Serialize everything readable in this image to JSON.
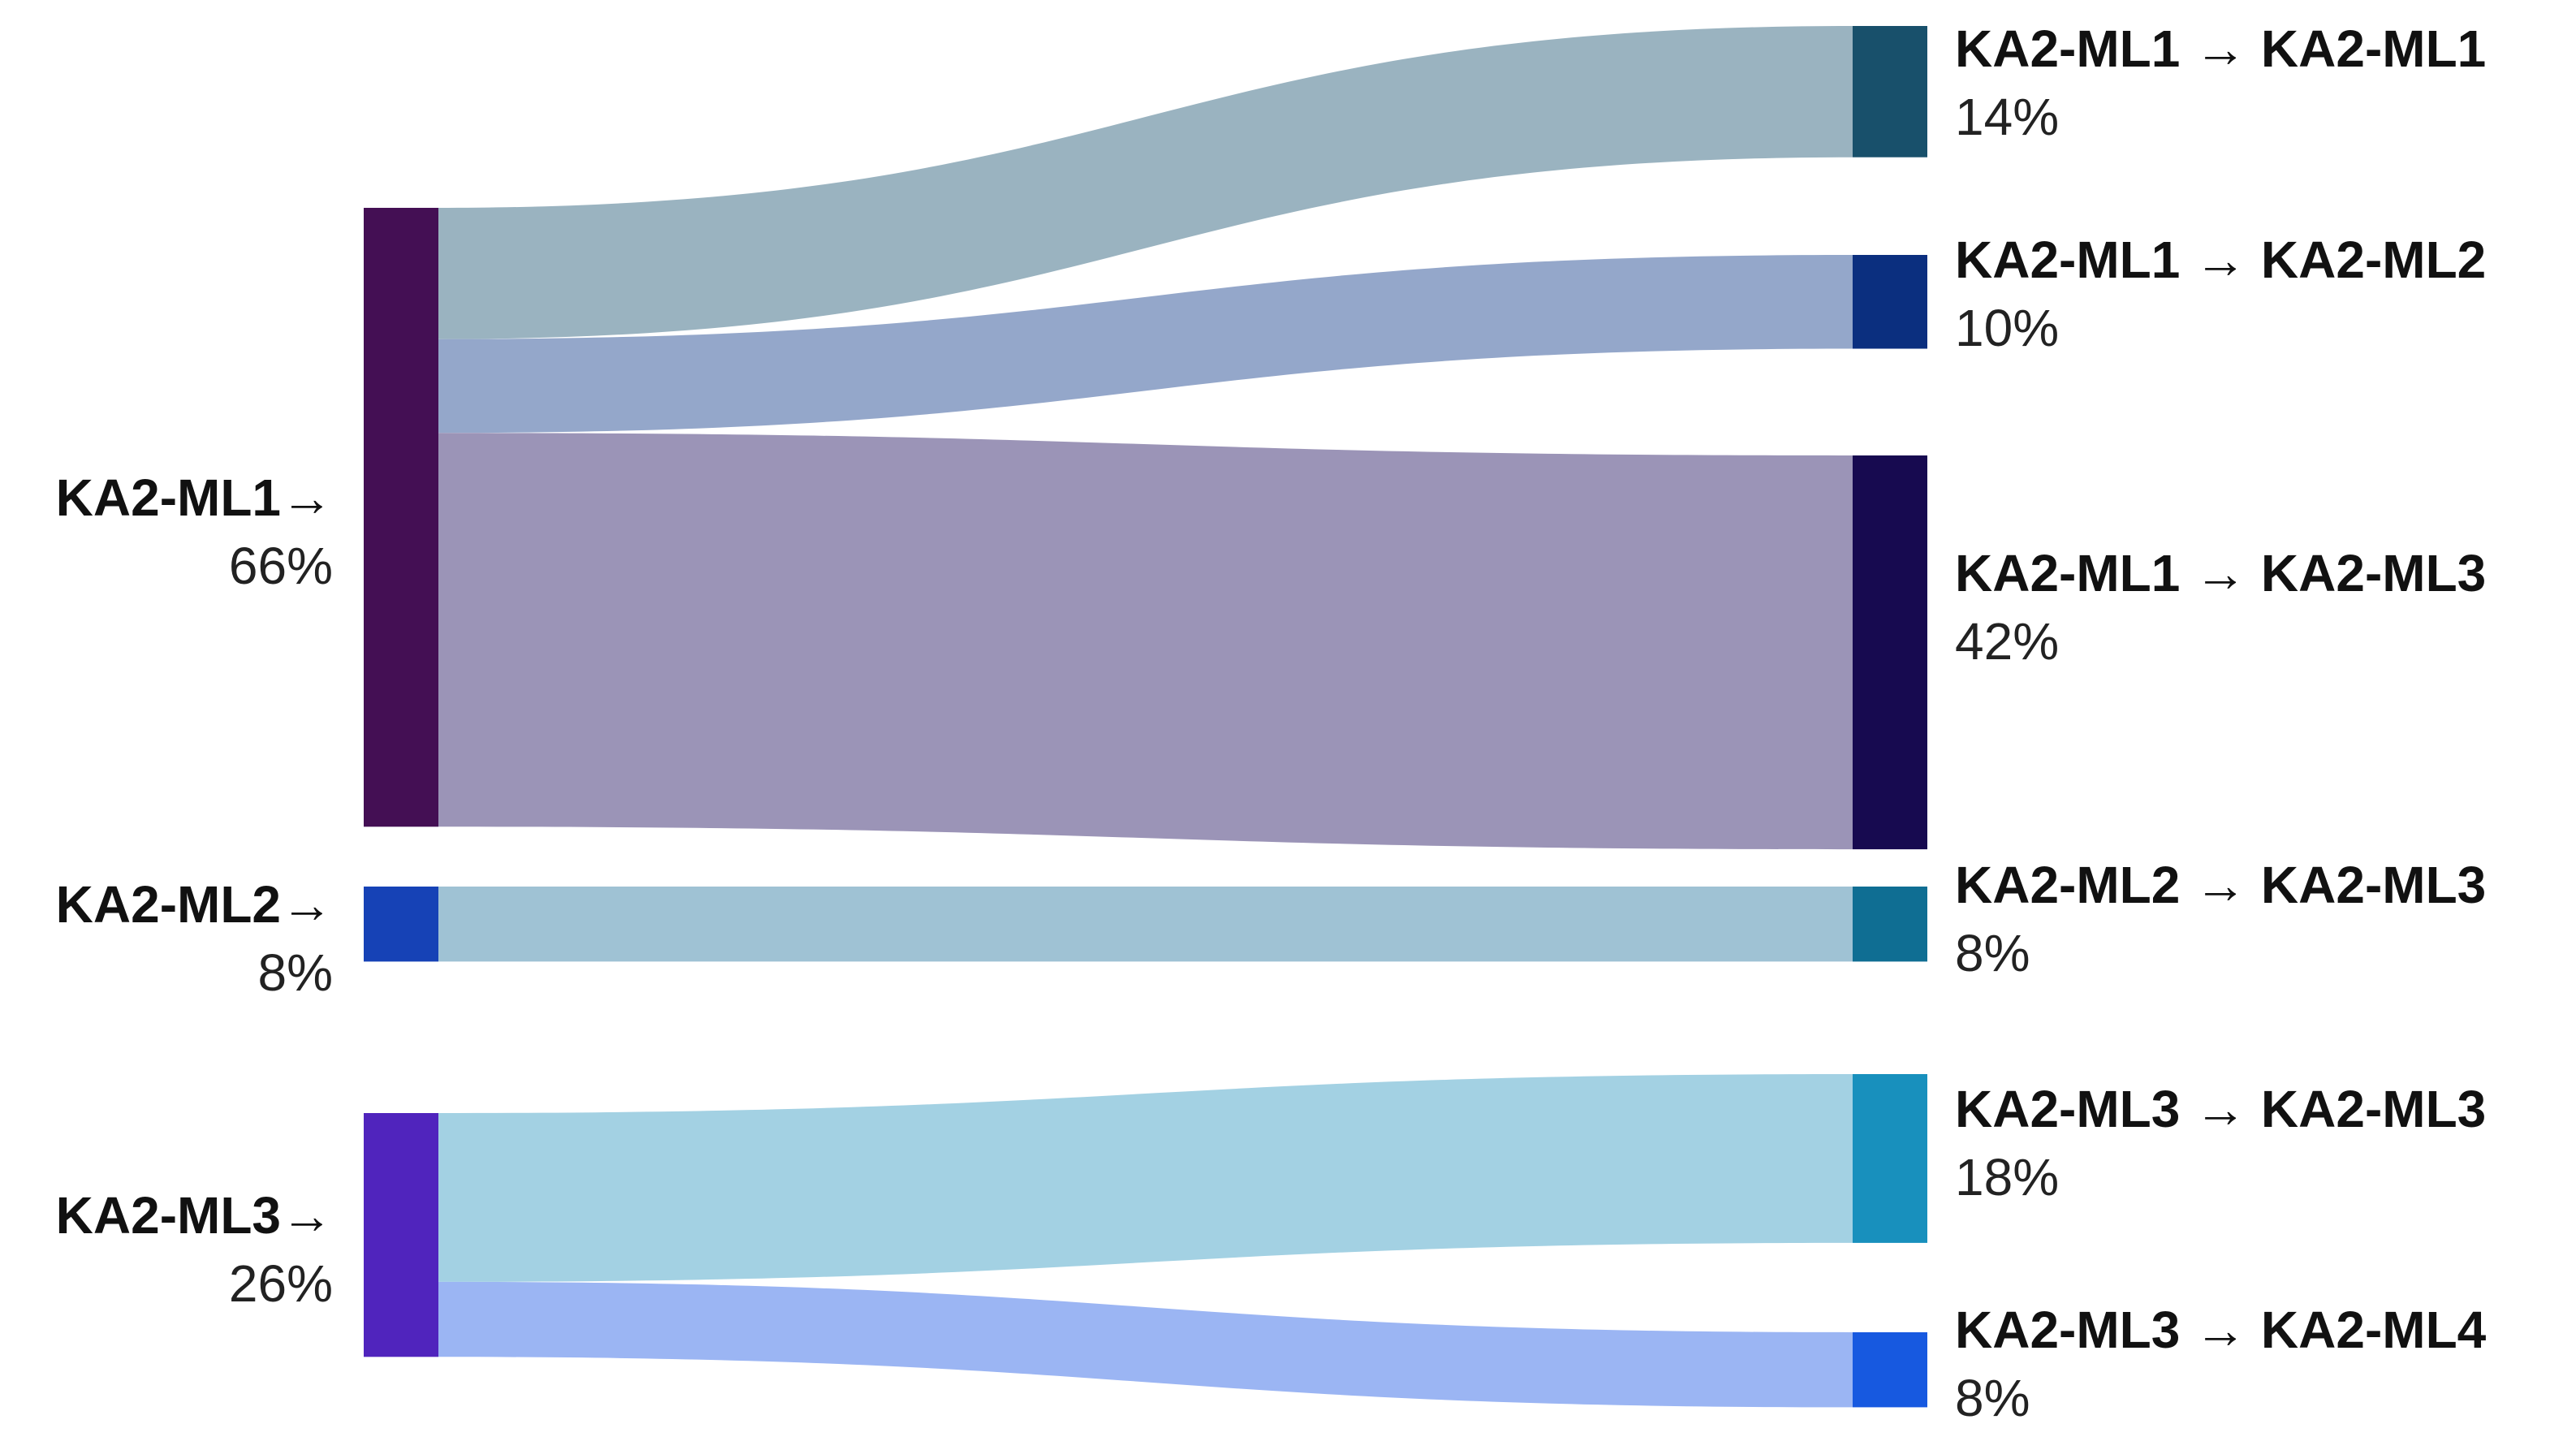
{
  "chart_data": {
    "type": "sankey",
    "unit": "%",
    "sources": [
      {
        "id": "src1",
        "label": "KA2-ML1→",
        "value_label": "66%",
        "value": 66,
        "color": "#440f54"
      },
      {
        "id": "src2",
        "label": "KA2-ML2→",
        "value_label": "8%",
        "value": 8,
        "color": "#1642b6"
      },
      {
        "id": "src3",
        "label": "KA2-ML3→",
        "value_label": "26%",
        "value": 26,
        "color": "#5024bd"
      }
    ],
    "targets": [
      {
        "id": "t1",
        "label": "KA2-ML1 → KA2-ML1",
        "value_label": "14%",
        "value": 14,
        "color": "#18506b"
      },
      {
        "id": "t2",
        "label": "KA2-ML1 → KA2-ML2",
        "value_label": "10%",
        "value": 10,
        "color": "#0b2f7f"
      },
      {
        "id": "t3",
        "label": "KA2-ML1 → KA2-ML3",
        "value_label": "42%",
        "value": 42,
        "color": "#170a50"
      },
      {
        "id": "t4",
        "label": "KA2-ML2 → KA2-ML3",
        "value_label": "8%",
        "value": 8,
        "color": "#0f6e93"
      },
      {
        "id": "t5",
        "label": "KA2-ML3 → KA2-ML3",
        "value_label": "18%",
        "value": 18,
        "color": "#1890bd"
      },
      {
        "id": "t6",
        "label": "KA2-ML3 → KA2-ML4",
        "value_label": "8%",
        "value": 8,
        "color": "#1759e0"
      }
    ],
    "links": [
      {
        "source": "src1",
        "target": "t1",
        "value": 14,
        "color": "#9ab3c0"
      },
      {
        "source": "src1",
        "target": "t2",
        "value": 10,
        "color": "#94a7ca"
      },
      {
        "source": "src1",
        "target": "t3",
        "value": 42,
        "color": "#9b94b7"
      },
      {
        "source": "src2",
        "target": "t4",
        "value": 8,
        "color": "#9fc2d4"
      },
      {
        "source": "src3",
        "target": "t5",
        "value": 18,
        "color": "#a3d1e3"
      },
      {
        "source": "src3",
        "target": "t6",
        "value": 8,
        "color": "#9bb5f3"
      }
    ]
  }
}
